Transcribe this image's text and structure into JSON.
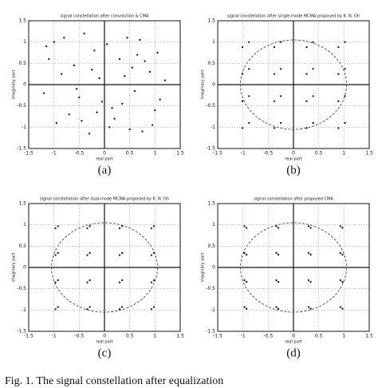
{
  "chart_data": [
    {
      "type": "scatter",
      "title": "signal constellation after convolution & CMA",
      "x_label": "real part",
      "y_label": "imaginary part",
      "caption": "(a)",
      "color": "#222222",
      "grid": true,
      "xlim": [
        -1.5,
        1.5
      ],
      "ylim": [
        -1.5,
        1.5
      ],
      "xticks": [
        -1.5,
        -1,
        -0.5,
        0,
        0.5,
        1,
        1.5
      ],
      "yticks": [
        -1.5,
        -1,
        -0.5,
        0,
        0.5,
        1,
        1.5
      ],
      "x": [
        -1.1,
        -0.8,
        -0.5,
        -0.2,
        0.1,
        0.4,
        0.7,
        1.0,
        1.2,
        -0.95,
        -0.6,
        -0.3,
        0.05,
        0.35,
        0.65,
        0.9,
        -1.2,
        -0.7,
        -0.4,
        -0.1,
        0.2,
        0.5,
        0.8,
        1.1,
        -1.0,
        -0.55,
        -0.25,
        0.15,
        0.45,
        0.75,
        1.05,
        -0.85,
        -0.45,
        -0.05,
        0.3,
        0.6,
        0.95,
        -1.15,
        -0.15,
        0.55
      ],
      "values": [
        0.6,
        1.1,
        -0.3,
        0.8,
        -1.0,
        0.2,
        1.05,
        -0.6,
        0.1,
        -0.9,
        0.45,
        -1.15,
        0.95,
        -0.45,
        0.7,
        0.3,
        -0.2,
        -0.7,
        1.2,
        0.15,
        -0.8,
        -1.05,
        0.55,
        -0.35,
        1.0,
        -0.1,
        0.35,
        -0.55,
        1.1,
        -1.1,
        0.75,
        0.25,
        -0.85,
        -0.4,
        0.6,
        -0.15,
        -0.95,
        0.9,
        -0.65,
        0.4
      ]
    },
    {
      "type": "scatter",
      "title": "signal constellation after single-mode MCMA proposed by K. N. Oh",
      "x_label": "real part",
      "y_label": "imaginary part",
      "caption": "(b)",
      "color": "#222222",
      "grid": true,
      "circle_radius": 1.05,
      "xlim": [
        -1.5,
        1.5
      ],
      "ylim": [
        -1.5,
        1.5
      ],
      "xticks": [
        -1.5,
        -1,
        -0.5,
        0,
        0.5,
        1,
        1.5
      ],
      "yticks": [
        -1.5,
        -1,
        -0.5,
        0,
        0.5,
        1,
        1.5
      ],
      "x": [
        -0.88,
        -1.01,
        -0.25,
        -0.38,
        0.39,
        0.26,
        1.02,
        0.89,
        -0.88,
        -1.01,
        -0.25,
        -0.38,
        0.39,
        0.26,
        1.02,
        0.89,
        -0.88,
        -1.01,
        -0.25,
        -0.38,
        0.39,
        0.26,
        1.02,
        0.89,
        -0.88,
        -1.01,
        -0.25,
        -0.38,
        0.39,
        0.26,
        1.02,
        0.89
      ],
      "values": [
        1.0,
        0.88,
        1.0,
        0.88,
        1.0,
        0.88,
        1.0,
        0.88,
        0.37,
        0.25,
        0.37,
        0.25,
        0.37,
        0.25,
        0.37,
        0.25,
        -0.27,
        -0.39,
        -0.27,
        -0.39,
        -0.27,
        -0.39,
        -0.27,
        -0.39,
        -0.9,
        -1.02,
        -0.9,
        -1.02,
        -0.9,
        -1.02,
        -0.9,
        -1.02
      ]
    },
    {
      "type": "scatter",
      "title": "signal constellation after dual-mode MCMA proposed by K. N. Oh",
      "x_label": "real part",
      "y_label": "imaginary part",
      "caption": "(c)",
      "color": "#222222",
      "grid": true,
      "circle_radius": 1.05,
      "xlim": [
        -1.5,
        1.5
      ],
      "ylim": [
        -1.5,
        1.5
      ],
      "xticks": [
        -1.5,
        -1,
        -0.5,
        0,
        0.5,
        1,
        1.5
      ],
      "yticks": [
        -1.5,
        -1,
        -0.5,
        0,
        0.5,
        1,
        1.5
      ],
      "x": [
        -0.92,
        -0.97,
        -0.29,
        -0.34,
        0.35,
        0.3,
        0.98,
        0.93,
        -0.92,
        -0.97,
        -0.29,
        -0.34,
        0.35,
        0.3,
        0.98,
        0.93,
        -0.92,
        -0.97,
        -0.29,
        -0.34,
        0.35,
        0.3,
        0.98,
        0.93,
        -0.92,
        -0.97,
        -0.29,
        -0.34,
        0.35,
        0.3,
        0.98,
        0.93
      ],
      "values": [
        0.97,
        0.92,
        0.97,
        0.92,
        0.97,
        0.92,
        0.97,
        0.92,
        0.34,
        0.29,
        0.34,
        0.29,
        0.34,
        0.29,
        0.34,
        0.29,
        -0.3,
        -0.35,
        -0.3,
        -0.35,
        -0.3,
        -0.35,
        -0.3,
        -0.35,
        -0.93,
        -0.98,
        -0.93,
        -0.98,
        -0.93,
        -0.98,
        -0.93,
        -0.98
      ]
    },
    {
      "type": "scatter",
      "title": "signal constellation after proposed CMA",
      "x_label": "real part",
      "y_label": "imaginary part",
      "caption": "(d)",
      "color": "#222222",
      "grid": true,
      "circle_radius": 1.05,
      "xlim": [
        -1.5,
        1.5
      ],
      "ylim": [
        -1.5,
        1.5
      ],
      "xticks": [
        -1.5,
        -1,
        -0.5,
        0,
        0.5,
        1,
        1.5
      ],
      "yticks": [
        -1.5,
        -1,
        -0.5,
        0,
        0.5,
        1,
        1.5
      ],
      "x": [
        -0.97,
        -0.93,
        -0.34,
        -0.3,
        0.3,
        0.34,
        0.93,
        0.97,
        -0.97,
        -0.93,
        -0.34,
        -0.3,
        0.3,
        0.34,
        0.93,
        0.97,
        -0.97,
        -0.93,
        -0.34,
        -0.3,
        0.3,
        0.34,
        0.93,
        0.97,
        -0.97,
        -0.93,
        -0.34,
        -0.3,
        0.3,
        0.34,
        0.93,
        0.97
      ],
      "values": [
        0.97,
        0.93,
        0.97,
        0.93,
        0.97,
        0.93,
        0.97,
        0.93,
        0.34,
        0.3,
        0.34,
        0.3,
        0.34,
        0.3,
        0.34,
        0.3,
        -0.3,
        -0.34,
        -0.3,
        -0.34,
        -0.3,
        -0.34,
        -0.3,
        -0.34,
        -0.93,
        -0.97,
        -0.93,
        -0.97,
        -0.93,
        -0.97,
        -0.93,
        -0.97
      ]
    }
  ],
  "figure_caption": "Fig. 1.  The signal constellation after equalization"
}
